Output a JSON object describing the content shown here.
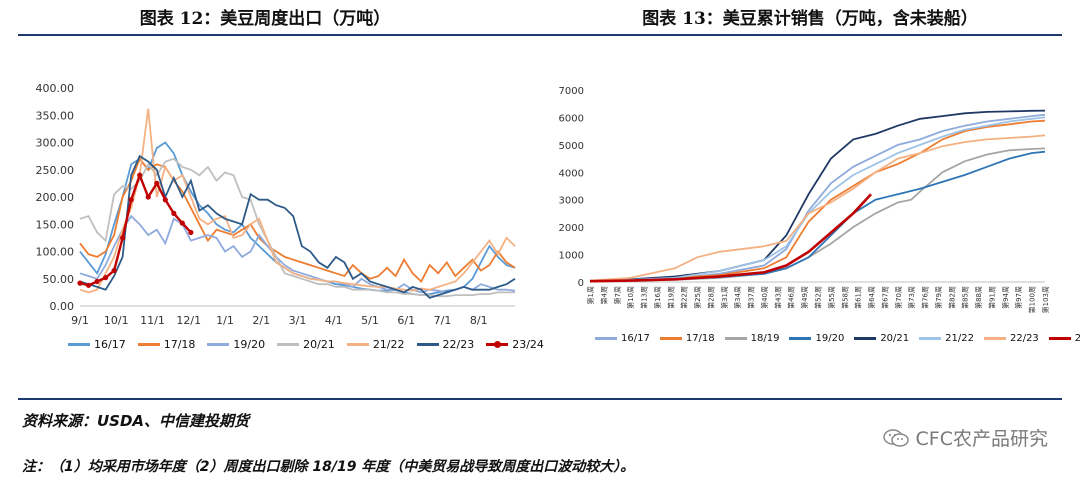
{
  "titles": {
    "left": "图表 12：美豆周度出口（万吨）",
    "right": "图表 13：美豆累计销售（万吨，含未装船）"
  },
  "footer": {
    "source": "资料来源：USDA、中信建投期货",
    "note": "注：（1）均采用市场年度（2）周度出口剔除 18/19 年度（中美贸易战导致周度出口波动较大）。",
    "watermark": "CFC农产品研究"
  },
  "colors": {
    "rule": "#1f3a6e",
    "s16_17": "#5b9bd5",
    "s17_18": "#ed7d31",
    "s18_19": "#a5a5a5",
    "s19_20": "#8faadc",
    "s20_21": "#bfbfbf",
    "s21_22": "#f4b183",
    "s22_23": "#2e5a88",
    "s23_24": "#c00000",
    "s19_20b": "#2e75b6",
    "s20_21b": "#203864",
    "s21_22b": "#9dc3e6"
  },
  "chart_data": [
    {
      "type": "line",
      "title": "美豆周度出口（万吨）",
      "xlabel": "",
      "ylabel": "",
      "ylim": [
        0,
        400
      ],
      "yticks": [
        "0.00",
        "50.00",
        "100.00",
        "150.00",
        "200.00",
        "250.00",
        "300.00",
        "350.00",
        "400.00"
      ],
      "xticks": [
        "9/1",
        "10/1",
        "11/1",
        "12/1",
        "1/1",
        "2/1",
        "3/1",
        "4/1",
        "5/1",
        "6/1",
        "7/1",
        "8/1"
      ],
      "n_weeks": 52,
      "legend": "bottom",
      "series": [
        {
          "name": "16/17",
          "color": "#5b9bd5",
          "values": [
            100,
            80,
            60,
            95,
            150,
            200,
            260,
            270,
            250,
            290,
            300,
            280,
            240,
            210,
            185,
            170,
            150,
            140,
            135,
            150,
            125,
            110,
            95,
            80,
            70,
            60,
            55,
            50,
            48,
            45,
            40,
            38,
            35,
            32,
            30,
            28,
            28,
            30,
            25,
            22,
            20,
            22,
            25,
            28,
            30,
            35,
            50,
            80,
            110,
            90,
            75,
            70
          ]
        },
        {
          "name": "17/18",
          "color": "#ed7d31",
          "values": [
            115,
            95,
            90,
            100,
            130,
            200,
            230,
            270,
            250,
            260,
            255,
            230,
            210,
            180,
            150,
            120,
            140,
            135,
            130,
            140,
            150,
            125,
            110,
            100,
            90,
            85,
            80,
            75,
            70,
            65,
            60,
            55,
            75,
            60,
            50,
            55,
            70,
            55,
            85,
            60,
            45,
            75,
            60,
            80,
            55,
            70,
            85,
            65,
            75,
            100,
            80,
            70
          ]
        },
        {
          "name": "19/20",
          "color": "#8faadc",
          "values": [
            60,
            55,
            50,
            75,
            110,
            140,
            165,
            150,
            130,
            140,
            115,
            160,
            150,
            120,
            125,
            130,
            125,
            100,
            110,
            90,
            100,
            130,
            110,
            90,
            75,
            65,
            60,
            55,
            50,
            45,
            45,
            40,
            35,
            50,
            40,
            35,
            30,
            30,
            40,
            30,
            25,
            30,
            28,
            25,
            30,
            35,
            30,
            40,
            35,
            30,
            30,
            28
          ]
        },
        {
          "name": "20/21",
          "color": "#bfbfbf",
          "values": [
            160,
            165,
            135,
            120,
            205,
            220,
            215,
            230,
            260,
            240,
            265,
            270,
            255,
            250,
            240,
            255,
            230,
            245,
            240,
            200,
            195,
            150,
            120,
            90,
            60,
            55,
            50,
            45,
            40,
            40,
            35,
            35,
            30,
            30,
            30,
            28,
            25,
            25,
            22,
            22,
            20,
            20,
            18,
            18,
            20,
            20,
            20,
            22,
            22,
            25,
            25,
            25
          ]
        },
        {
          "name": "21/22",
          "color": "#f4b183",
          "values": [
            30,
            25,
            30,
            60,
            90,
            140,
            180,
            240,
            362,
            200,
            255,
            230,
            240,
            200,
            160,
            150,
            160,
            165,
            125,
            130,
            150,
            160,
            120,
            80,
            70,
            60,
            55,
            50,
            48,
            45,
            45,
            42,
            40,
            38,
            36,
            35,
            35,
            32,
            30,
            28,
            32,
            30,
            35,
            40,
            45,
            60,
            80,
            100,
            120,
            95,
            125,
            110
          ]
        },
        {
          "name": "22/23",
          "color": "#2e5a88",
          "values": [
            45,
            40,
            35,
            30,
            55,
            90,
            240,
            275,
            265,
            250,
            200,
            235,
            200,
            230,
            175,
            185,
            170,
            160,
            155,
            150,
            205,
            195,
            195,
            185,
            180,
            165,
            110,
            100,
            80,
            70,
            90,
            80,
            50,
            60,
            45,
            40,
            35,
            30,
            25,
            35,
            30,
            15,
            20,
            25,
            30,
            35,
            30,
            30,
            30,
            35,
            40,
            50
          ]
        },
        {
          "name": "23/24",
          "color": "#c00000",
          "values": [
            42,
            38,
            45,
            52,
            65,
            125,
            195,
            240,
            200,
            225,
            195,
            170,
            152,
            135
          ],
          "markers": true
        }
      ]
    },
    {
      "type": "line",
      "title": "美豆累计销售（万吨，含未装船）",
      "xlabel": "",
      "ylabel": "",
      "ylim": [
        0,
        7000
      ],
      "yticks": [
        "0",
        "1000",
        "2000",
        "3000",
        "4000",
        "5000",
        "6000",
        "7000"
      ],
      "xticks": [
        "第1周",
        "第4周",
        "第7周",
        "第10周",
        "第13周",
        "第16周",
        "第19周",
        "第22周",
        "第25周",
        "第28周",
        "第31周",
        "第34周",
        "第37周",
        "第40周",
        "第43周",
        "第46周",
        "第49周",
        "第52周",
        "第55周",
        "第58周",
        "第61周",
        "第64周",
        "第67周",
        "第70周",
        "第73周",
        "第76周",
        "第79周",
        "第82周",
        "第85周",
        "第88周",
        "第91周",
        "第94周",
        "第97周",
        "第100周",
        "第103周"
      ],
      "x_units": "周 (1–103)",
      "legend": "bottom",
      "series": [
        {
          "name": "16/17",
          "color": "#8faadc",
          "x": [
            1,
            10,
            20,
            30,
            40,
            45,
            50,
            55,
            60,
            65,
            70,
            75,
            80,
            85,
            90,
            95,
            100,
            103
          ],
          "values": [
            50,
            80,
            120,
            300,
            600,
            1200,
            2600,
            3600,
            4200,
            4600,
            5000,
            5200,
            5500,
            5700,
            5850,
            5950,
            6050,
            6100
          ]
        },
        {
          "name": "17/18",
          "color": "#ed7d31",
          "x": [
            1,
            10,
            20,
            30,
            40,
            45,
            50,
            55,
            60,
            65,
            70,
            75,
            80,
            85,
            90,
            95,
            100,
            103
          ],
          "values": [
            40,
            60,
            150,
            250,
            500,
            900,
            2200,
            3000,
            3500,
            4000,
            4300,
            4700,
            5200,
            5500,
            5650,
            5750,
            5850,
            5880
          ]
        },
        {
          "name": "18/19",
          "color": "#a5a5a5",
          "x": [
            1,
            10,
            20,
            30,
            40,
            45,
            50,
            55,
            60,
            65,
            70,
            73,
            75,
            80,
            85,
            90,
            95,
            100,
            103
          ],
          "values": [
            30,
            50,
            80,
            150,
            300,
            500,
            900,
            1400,
            2000,
            2500,
            2900,
            3000,
            3300,
            4000,
            4400,
            4650,
            4800,
            4850,
            4870
          ]
        },
        {
          "name": "19/20",
          "color": "#2e75b6",
          "x": [
            1,
            10,
            20,
            30,
            40,
            45,
            50,
            55,
            60,
            65,
            70,
            75,
            80,
            85,
            90,
            95,
            100,
            103
          ],
          "values": [
            30,
            50,
            100,
            180,
            300,
            500,
            900,
            1700,
            2500,
            3000,
            3200,
            3400,
            3650,
            3900,
            4200,
            4500,
            4700,
            4750
          ]
        },
        {
          "name": "20/21",
          "color": "#203864",
          "x": [
            1,
            10,
            20,
            30,
            40,
            45,
            50,
            55,
            60,
            65,
            70,
            75,
            80,
            85,
            90,
            95,
            100,
            103
          ],
          "values": [
            50,
            100,
            200,
            400,
            800,
            1700,
            3200,
            4500,
            5200,
            5400,
            5700,
            5950,
            6050,
            6150,
            6200,
            6220,
            6240,
            6250
          ]
        },
        {
          "name": "21/22",
          "color": "#9dc3e6",
          "x": [
            1,
            10,
            20,
            30,
            40,
            45,
            50,
            55,
            60,
            65,
            70,
            75,
            80,
            85,
            90,
            95,
            100,
            103
          ],
          "values": [
            50,
            80,
            150,
            400,
            800,
            1300,
            2500,
            3300,
            3900,
            4300,
            4700,
            5000,
            5300,
            5550,
            5700,
            5850,
            5950,
            6000
          ]
        },
        {
          "name": "22/23",
          "color": "#f4b183",
          "x": [
            1,
            10,
            20,
            25,
            30,
            40,
            45,
            50,
            55,
            60,
            65,
            70,
            75,
            80,
            85,
            90,
            95,
            100,
            103
          ],
          "values": [
            50,
            150,
            500,
            900,
            1100,
            1300,
            1500,
            2500,
            2900,
            3400,
            4000,
            4500,
            4700,
            4950,
            5100,
            5200,
            5250,
            5300,
            5350
          ]
        },
        {
          "name": "23/24",
          "color": "#c00000",
          "x": [
            1,
            10,
            20,
            30,
            40,
            45,
            50,
            55,
            60,
            64
          ],
          "values": [
            30,
            50,
            100,
            200,
            350,
            600,
            1100,
            1800,
            2500,
            3200
          ]
        }
      ]
    }
  ]
}
